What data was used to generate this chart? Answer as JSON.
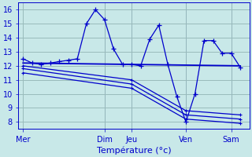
{
  "bg_color": "#c8e8e8",
  "grid_color": "#99bbbb",
  "line_color": "#0000cc",
  "ylim": [
    7.5,
    16.5
  ],
  "yticks": [
    8,
    9,
    10,
    11,
    12,
    13,
    14,
    15,
    16
  ],
  "xlabel": "Température (°c)",
  "day_labels": [
    "Mer",
    "Dim",
    "Jeu",
    "Ven",
    "Sam"
  ],
  "day_positions": [
    0,
    9,
    12,
    18,
    23
  ],
  "xlim": [
    -0.5,
    25
  ],
  "series1_x": [
    0,
    1,
    2,
    3,
    4,
    5,
    6,
    7,
    8,
    9,
    10,
    11,
    12,
    13,
    14,
    15,
    16,
    17,
    18,
    19,
    20,
    21,
    22,
    23,
    24
  ],
  "series1_y": [
    12.5,
    12.2,
    12.1,
    12.2,
    12.3,
    12.4,
    12.5,
    15.0,
    16.0,
    15.3,
    13.2,
    12.1,
    12.1,
    12.0,
    13.9,
    14.9,
    12.1,
    9.8,
    8.0,
    10.0,
    13.8,
    13.8,
    12.9,
    12.9,
    11.9
  ],
  "series2_x": [
    0,
    24
  ],
  "series2_y": [
    12.2,
    12.0
  ],
  "series3_x": [
    0,
    12,
    18,
    24
  ],
  "series3_y": [
    12.0,
    11.0,
    8.8,
    8.5
  ],
  "series4_x": [
    0,
    12,
    18,
    24
  ],
  "series4_y": [
    11.8,
    10.7,
    8.5,
    8.2
  ],
  "series5_x": [
    0,
    12,
    18,
    24
  ],
  "series5_y": [
    11.5,
    10.4,
    8.2,
    7.9
  ]
}
